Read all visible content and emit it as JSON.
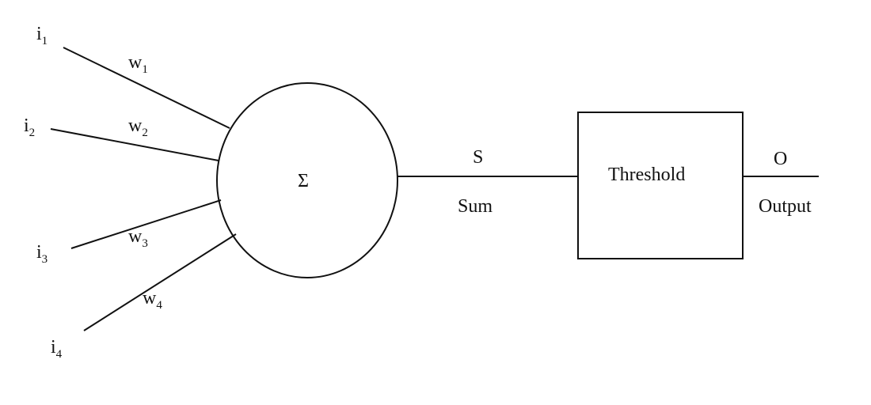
{
  "inputs": [
    {
      "base": "i",
      "sub": "1",
      "weight_base": "w",
      "weight_sub": "1"
    },
    {
      "base": "i",
      "sub": "2",
      "weight_base": "w",
      "weight_sub": "2"
    },
    {
      "base": "i",
      "sub": "3",
      "weight_base": "w",
      "weight_sub": "3"
    },
    {
      "base": "i",
      "sub": "4",
      "weight_base": "w",
      "weight_sub": "4"
    }
  ],
  "summation": {
    "symbol": "Σ"
  },
  "sum_edge": {
    "symbol": "S",
    "label": "Sum"
  },
  "threshold": {
    "label": "Threshold"
  },
  "output": {
    "symbol": "O",
    "label": "Output"
  }
}
